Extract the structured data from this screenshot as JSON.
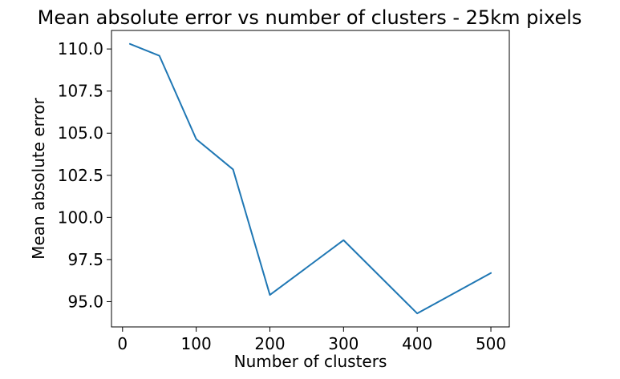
{
  "chart_data": {
    "type": "line",
    "title": "Mean absolute error vs number of clusters - 25km pixels",
    "xlabel": "Number of clusters",
    "ylabel": "Mean absolute error",
    "xlim": [
      -15,
      525
    ],
    "ylim": [
      93.5,
      111.1
    ],
    "xticks": [
      0,
      100,
      200,
      300,
      400,
      500
    ],
    "xtick_labels": [
      "0",
      "100",
      "200",
      "300",
      "400",
      "500"
    ],
    "yticks": [
      95.0,
      97.5,
      100.0,
      102.5,
      105.0,
      107.5,
      110.0
    ],
    "ytick_labels": [
      "95.0",
      "97.5",
      "100.0",
      "102.5",
      "105.0",
      "107.5",
      "110.0"
    ],
    "grid": false,
    "series": [
      {
        "color": "#1f77b4",
        "x": [
          10,
          50,
          100,
          150,
          200,
          300,
          400,
          500
        ],
        "y": [
          110.3,
          109.6,
          104.65,
          102.85,
          95.4,
          98.65,
          94.3,
          96.7
        ]
      }
    ]
  }
}
